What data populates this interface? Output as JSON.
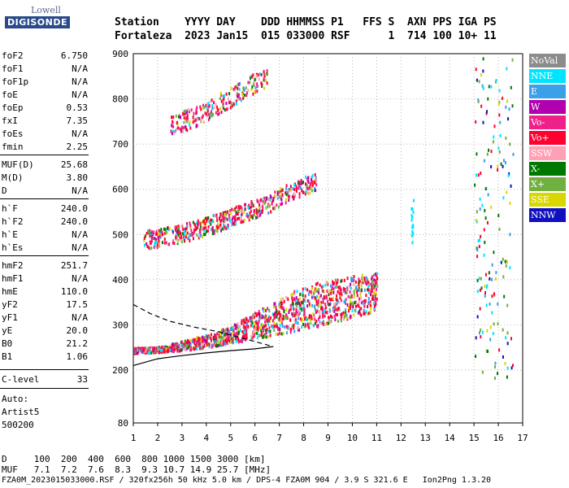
{
  "logo": {
    "top": "Lowell",
    "bottom": "DIGISONDE"
  },
  "header": {
    "line1": "Station    YYYY DAY    DDD HHMMSS P1   FFS S  AXN PPS IGA PS",
    "line2": "Fortaleza  2023 Jan15  015 033000 RSF      1  714 100 10+ 11"
  },
  "parameters": [
    {
      "label": "foF2",
      "value": "6.750"
    },
    {
      "label": "foF1",
      "value": "N/A"
    },
    {
      "label": "foF1p",
      "value": "N/A"
    },
    {
      "label": "foE",
      "value": "N/A"
    },
    {
      "label": "foEp",
      "value": "0.53"
    },
    {
      "label": "fxI",
      "value": "7.35"
    },
    {
      "label": "foEs",
      "value": "N/A"
    },
    {
      "label": "fmin",
      "value": "2.25"
    },
    {
      "label": "MUF(D)",
      "value": "25.68"
    },
    {
      "label": "M(D)",
      "value": "3.80"
    },
    {
      "label": "D",
      "value": "N/A"
    },
    {
      "label": "h`F",
      "value": "240.0"
    },
    {
      "label": "h`F2",
      "value": "240.0"
    },
    {
      "label": "h`E",
      "value": "N/A"
    },
    {
      "label": "h`Es",
      "value": "N/A"
    },
    {
      "label": "hmF2",
      "value": "251.7"
    },
    {
      "label": "hmF1",
      "value": "N/A"
    },
    {
      "label": "hmE",
      "value": "110.0"
    },
    {
      "label": "yF2",
      "value": "17.5"
    },
    {
      "label": "yF1",
      "value": "N/A"
    },
    {
      "label": "yE",
      "value": "20.0"
    },
    {
      "label": "B0",
      "value": "21.2"
    },
    {
      "label": "B1",
      "value": "1.06"
    },
    {
      "label": "C-level",
      "value": "33"
    }
  ],
  "auto": {
    "line1": "Auto:",
    "line2": "Artist5",
    "line3": "500200"
  },
  "legend": [
    {
      "label": "NoVal",
      "color": "#8c8c8c"
    },
    {
      "label": "NNE",
      "color": "#00e5ff"
    },
    {
      "label": "E",
      "color": "#3aa0e8"
    },
    {
      "label": "W",
      "color": "#b000b0"
    },
    {
      "label": "Vo-",
      "color": "#f0208a"
    },
    {
      "label": "Vo+",
      "color": "#ff0030"
    },
    {
      "label": "SSW",
      "color": "#ffa0b4"
    },
    {
      "label": "X-",
      "color": "#007800"
    },
    {
      "label": "X+",
      "color": "#70b040"
    },
    {
      "label": "SSE",
      "color": "#d8d800"
    },
    {
      "label": "NNW",
      "color": "#1010c0"
    }
  ],
  "footer": {
    "line1": "D     100  200  400  600  800 1000 1500 3000 [km]",
    "line2": "MUF   7.1  7.2  7.6  8.3  9.3 10.7 14.9 25.7 [MHz]",
    "line3": "FZA0M_2023015033000.RSF / 320fx256h 50 kHz 5.0 km / DPS-4 FZA0M 904 / 3.9 S 321.6 E   Ion2Png 1.3.20"
  },
  "chart_data": {
    "type": "scatter",
    "title": "",
    "xlabel": "",
    "ylabel": "",
    "xlim": [
      1,
      17
    ],
    "ylim": [
      80,
      900
    ],
    "xticks": [
      1,
      2,
      3,
      4,
      5,
      6,
      7,
      8,
      9,
      10,
      11,
      12,
      13,
      14,
      15,
      16,
      17
    ],
    "yticks": [
      80,
      200,
      300,
      400,
      500,
      600,
      700,
      800,
      900
    ],
    "ytick_labels": [
      "80",
      "200",
      "300",
      "400",
      "500",
      "600",
      "700",
      "800",
      "900"
    ],
    "traces": [
      {
        "name": "F2 first hop",
        "points": [
          [
            1.0,
            240
          ],
          [
            2.0,
            242
          ],
          [
            3.0,
            246
          ],
          [
            4.0,
            252
          ],
          [
            5.0,
            262
          ],
          [
            6.0,
            272
          ],
          [
            7.0,
            282
          ],
          [
            8.0,
            292
          ],
          [
            9.0,
            305
          ],
          [
            10.0,
            318
          ],
          [
            11.0,
            332
          ]
        ],
        "upper": [
          [
            2.5,
            260
          ],
          [
            4,
            280
          ],
          [
            5,
            300
          ],
          [
            6,
            330
          ],
          [
            7,
            360
          ],
          [
            8,
            390
          ],
          [
            9,
            400
          ],
          [
            10,
            410
          ],
          [
            11,
            420
          ]
        ]
      },
      {
        "name": "F2 second hop",
        "points": [
          [
            1.4,
            470
          ],
          [
            2.5,
            480
          ],
          [
            3.5,
            492
          ],
          [
            4.5,
            510
          ],
          [
            5.5,
            530
          ],
          [
            6.5,
            550
          ],
          [
            7.5,
            580
          ],
          [
            8.5,
            600
          ]
        ]
      },
      {
        "name": "F2 third hop",
        "points": [
          [
            2.5,
            720
          ],
          [
            3.5,
            740
          ],
          [
            4.5,
            770
          ],
          [
            5.5,
            800
          ],
          [
            6.5,
            830
          ]
        ]
      }
    ],
    "profile": [
      [
        1.0,
        210
      ],
      [
        2.0,
        225
      ],
      [
        3.0,
        232
      ],
      [
        4.0,
        238
      ],
      [
        5.0,
        243
      ],
      [
        6.0,
        247
      ],
      [
        6.75,
        252
      ]
    ],
    "profile_extrapolation": [
      [
        1.0,
        345
      ],
      [
        1.7,
        325
      ],
      [
        2.5,
        308
      ],
      [
        3.5,
        295
      ],
      [
        4.5,
        285
      ],
      [
        6.75,
        252
      ]
    ]
  }
}
